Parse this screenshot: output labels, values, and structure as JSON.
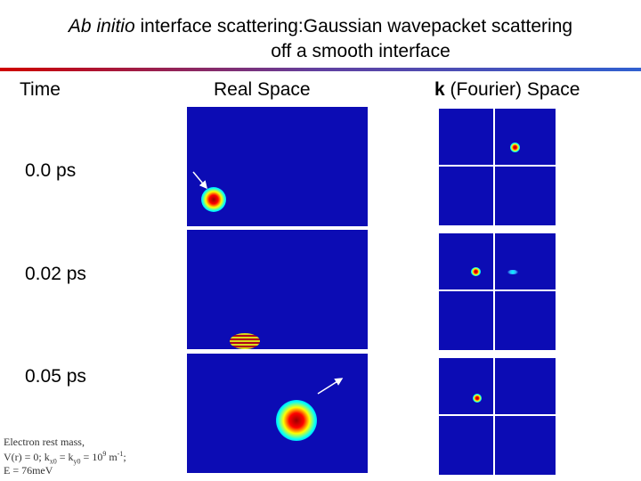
{
  "title": {
    "italic": "Ab initio",
    "line1_rest": " interface scattering:Gaussian wavepacket scattering",
    "line2": "off a smooth interface"
  },
  "columns": {
    "time": "Time",
    "real_space": "Real Space",
    "k_space": {
      "bold": "k",
      "rest": " (Fourier) Space"
    }
  },
  "rows": [
    {
      "time": "0.0 ps"
    },
    {
      "time": "0.02 ps"
    },
    {
      "time": "0.05 ps"
    }
  ],
  "note": {
    "line1": "Electron rest mass,",
    "line2": [
      {
        "text": "V(r) = 0; k"
      },
      {
        "sub": "x0"
      },
      {
        "text": " = k"
      },
      {
        "sub": "y0"
      },
      {
        "text": " = 10"
      },
      {
        "sup": "9"
      },
      {
        "text": " m"
      },
      {
        "sup": "-1"
      },
      {
        "text": ";"
      }
    ],
    "line3": "E = 76meV"
  }
}
